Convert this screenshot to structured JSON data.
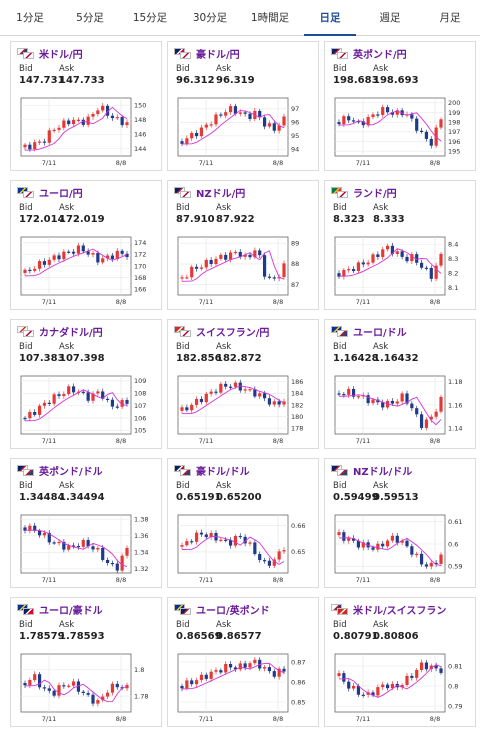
{
  "tabs": [
    {
      "label": "1分足",
      "active": false
    },
    {
      "label": "5分足",
      "active": false
    },
    {
      "label": "15分足",
      "active": false
    },
    {
      "label": "30分足",
      "active": false
    },
    {
      "label": "1時間足",
      "active": false
    },
    {
      "label": "日足",
      "active": true
    },
    {
      "label": "週足",
      "active": false
    },
    {
      "label": "月足",
      "active": false
    }
  ],
  "labels": {
    "bid": "Bid",
    "ask": "Ask"
  },
  "colors": {
    "up": "#e53935",
    "down": "#1e3a8a",
    "ma": "#d633d6",
    "active_tab": "#1d4e96",
    "pair": "#6a1b9a"
  },
  "chart_data": [
    {
      "type": "candlestick",
      "pair": "米ドル/円",
      "flags": [
        "us-flag",
        "jp-flag"
      ],
      "bid": "147.731",
      "ask": "147.733",
      "yticks": [
        "150",
        "148",
        "146",
        "144"
      ],
      "ylim": [
        143.0,
        151.0
      ],
      "xticks": [
        "7/11",
        "8/8"
      ],
      "trend": [
        144.2,
        144.6,
        145.1,
        146.7,
        147.3,
        148.0,
        147.6,
        148.2,
        149.9,
        148.7,
        147.9,
        147.5
      ]
    },
    {
      "type": "candlestick",
      "pair": "豪ドル/円",
      "flags": [
        "au-flag",
        "jp-flag"
      ],
      "bid": "96.312",
      "ask": "96.319",
      "yticks": [
        "97",
        "96",
        "95",
        "94"
      ],
      "ylim": [
        93.5,
        97.8
      ],
      "xticks": [
        "7/11",
        "8/8"
      ],
      "trend": [
        94.6,
        95.0,
        95.4,
        96.0,
        96.5,
        97.0,
        96.8,
        96.4,
        96.7,
        95.8,
        95.5,
        96.2
      ]
    },
    {
      "type": "candlestick",
      "pair": "英ポンド/円",
      "flags": [
        "gb-flag",
        "jp-flag"
      ],
      "bid": "198.683",
      "ask": "198.693",
      "yticks": [
        "200",
        "199",
        "198",
        "197",
        "196",
        "195"
      ],
      "ylim": [
        194.5,
        200.5
      ],
      "xticks": [
        "7/11",
        "8/8"
      ],
      "trend": [
        198.0,
        198.5,
        197.8,
        198.2,
        199.0,
        199.3,
        198.8,
        199.1,
        198.0,
        196.6,
        195.8,
        198.5
      ]
    },
    {
      "type": "candlestick",
      "pair": "ユーロ/円",
      "flags": [
        "eu-flag",
        "jp-flag"
      ],
      "bid": "172.014",
      "ask": "172.019",
      "yticks": [
        "174",
        "172",
        "170",
        "168",
        "166"
      ],
      "ylim": [
        165.0,
        175.0
      ],
      "xticks": [
        "7/11",
        "8/8"
      ],
      "trend": [
        168.8,
        169.8,
        170.6,
        171.3,
        172.0,
        172.5,
        173.1,
        172.0,
        171.0,
        171.5,
        172.2,
        172.0
      ]
    },
    {
      "type": "candlestick",
      "pair": "NZドル/円",
      "flags": [
        "nz-flag",
        "jp-flag"
      ],
      "bid": "87.910",
      "ask": "87.922",
      "yticks": [
        "89",
        "88",
        "87"
      ],
      "ylim": [
        86.5,
        89.3
      ],
      "xticks": [
        "7/11",
        "8/8"
      ],
      "trend": [
        87.3,
        87.7,
        87.9,
        88.1,
        88.3,
        88.4,
        88.6,
        88.2,
        88.8,
        87.4,
        87.2,
        87.9
      ]
    },
    {
      "type": "candlestick",
      "pair": "ランド/円",
      "flags": [
        "za-flag",
        "jp-flag"
      ],
      "bid": "8.323",
      "ask": "8.333",
      "yticks": [
        "8.4",
        "8.3",
        "8.2",
        "8.1"
      ],
      "ylim": [
        8.05,
        8.45
      ],
      "xticks": [
        "7/11",
        "8/8"
      ],
      "trend": [
        8.2,
        8.22,
        8.25,
        8.28,
        8.32,
        8.38,
        8.35,
        8.3,
        8.31,
        8.24,
        8.18,
        8.32
      ]
    },
    {
      "type": "candlestick",
      "pair": "カナダドル/円",
      "flags": [
        "ca-flag",
        "jp-flag"
      ],
      "bid": "107.383",
      "ask": "107.398",
      "yticks": [
        "109",
        "108",
        "107",
        "106",
        "105"
      ],
      "ylim": [
        104.7,
        109.4
      ],
      "xticks": [
        "7/11",
        "8/8"
      ],
      "trend": [
        106.0,
        106.5,
        107.1,
        107.6,
        108.0,
        108.4,
        108.0,
        107.6,
        108.2,
        107.1,
        107.0,
        107.4
      ]
    },
    {
      "type": "candlestick",
      "pair": "スイスフラン/円",
      "flags": [
        "ch-flag",
        "jp-flag"
      ],
      "bid": "182.856",
      "ask": "182.872",
      "yticks": [
        "186",
        "184",
        "182",
        "180",
        "178"
      ],
      "ylim": [
        177.0,
        187.0
      ],
      "xticks": [
        "7/11",
        "8/8"
      ],
      "trend": [
        181.0,
        182.0,
        183.0,
        184.0,
        185.0,
        185.5,
        185.2,
        184.5,
        184.0,
        183.0,
        182.0,
        182.8
      ]
    },
    {
      "type": "candlestick",
      "pair": "ユーロ/ドル",
      "flags": [
        "eu-flag",
        "us-flag"
      ],
      "bid": "1.16428",
      "ask": "1.16432",
      "yticks": [
        "1.18",
        "1.16",
        "1.14"
      ],
      "ylim": [
        1.135,
        1.185
      ],
      "xticks": [
        "7/11",
        "8/8"
      ],
      "trend": [
        1.17,
        1.171,
        1.168,
        1.165,
        1.162,
        1.16,
        1.163,
        1.168,
        1.155,
        1.142,
        1.15,
        1.164
      ]
    },
    {
      "type": "candlestick",
      "pair": "英ポンド/ドル",
      "flags": [
        "gb-flag",
        "us-flag"
      ],
      "bid": "1.34484",
      "ask": "1.34494",
      "yticks": [
        "1.38",
        "1.36",
        "1.34",
        "1.32"
      ],
      "ylim": [
        1.315,
        1.385
      ],
      "xticks": [
        "7/11",
        "8/8"
      ],
      "trend": [
        1.37,
        1.367,
        1.36,
        1.352,
        1.348,
        1.345,
        1.352,
        1.348,
        1.34,
        1.325,
        1.322,
        1.345
      ]
    },
    {
      "type": "candlestick",
      "pair": "豪ドル/ドル",
      "flags": [
        "au-flag",
        "us-flag"
      ],
      "bid": "0.65191",
      "ask": "0.65200",
      "yticks": [
        "0.66",
        "0.65"
      ],
      "ylim": [
        0.642,
        0.664
      ],
      "xticks": [
        "7/11",
        "8/8"
      ],
      "trend": [
        0.652,
        0.655,
        0.657,
        0.656,
        0.655,
        0.653,
        0.656,
        0.654,
        0.649,
        0.645,
        0.647,
        0.652
      ]
    },
    {
      "type": "candlestick",
      "pair": "NZドル/ドル",
      "flags": [
        "nz-flag",
        "us-flag"
      ],
      "bid": "0.59499",
      "ask": "0.59513",
      "yticks": [
        "0.61",
        "0.6",
        "0.59"
      ],
      "ylim": [
        0.587,
        0.613
      ],
      "xticks": [
        "7/11",
        "8/8"
      ],
      "trend": [
        0.604,
        0.602,
        0.6,
        0.599,
        0.598,
        0.601,
        0.603,
        0.6,
        0.596,
        0.591,
        0.59,
        0.595
      ]
    },
    {
      "type": "candlestick",
      "pair": "ユーロ/豪ドル",
      "flags": [
        "eu-flag",
        "au-flag"
      ],
      "bid": "1.78579",
      "ask": "1.78593",
      "yticks": [
        "1.8",
        "1.78"
      ],
      "ylim": [
        1.768,
        1.812
      ],
      "xticks": [
        "7/11",
        "8/8"
      ],
      "trend": [
        1.79,
        1.795,
        1.785,
        1.782,
        1.788,
        1.79,
        1.784,
        1.778,
        1.775,
        1.786,
        1.788,
        1.786
      ]
    },
    {
      "type": "candlestick",
      "pair": "ユーロ/英ポンド",
      "flags": [
        "eu-flag",
        "gb-flag"
      ],
      "bid": "0.86569",
      "ask": "0.86577",
      "yticks": [
        "0.87",
        "0.86",
        "0.85"
      ],
      "ylim": [
        0.845,
        0.874
      ],
      "xticks": [
        "7/11",
        "8/8"
      ],
      "trend": [
        0.858,
        0.86,
        0.862,
        0.864,
        0.866,
        0.868,
        0.867,
        0.869,
        0.87,
        0.866,
        0.864,
        0.866
      ]
    },
    {
      "type": "candlestick",
      "pair": "米ドル/スイスフラン",
      "flags": [
        "us-flag",
        "ch-flag"
      ],
      "bid": "0.80791",
      "ask": "0.80806",
      "yticks": [
        "0.81",
        "0.8",
        "0.79"
      ],
      "ylim": [
        0.787,
        0.816
      ],
      "xticks": [
        "7/11",
        "8/8"
      ],
      "trend": [
        0.805,
        0.8,
        0.797,
        0.795,
        0.798,
        0.801,
        0.799,
        0.802,
        0.806,
        0.811,
        0.809,
        0.808
      ]
    }
  ]
}
